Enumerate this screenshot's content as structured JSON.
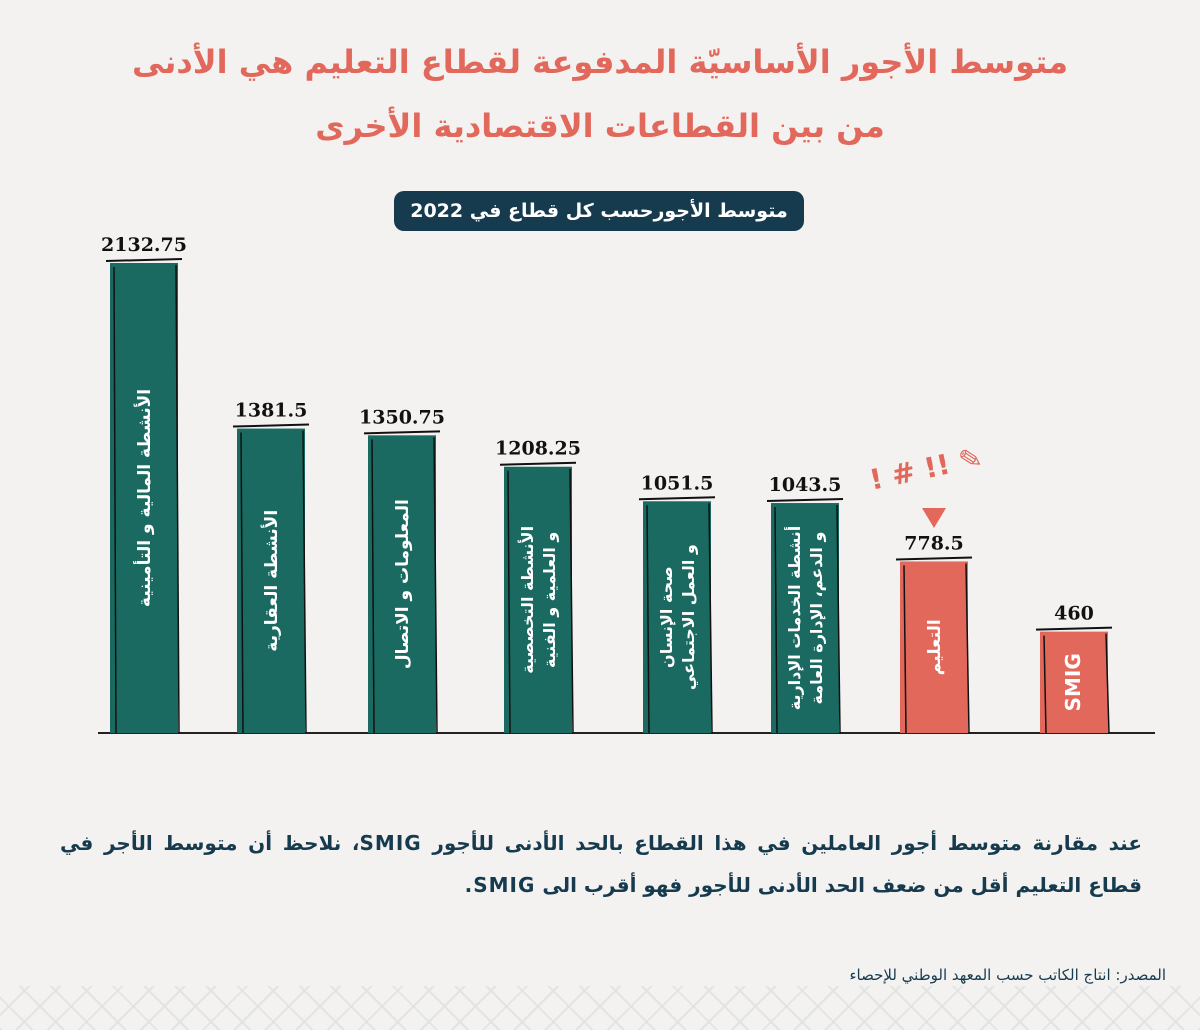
{
  "title_line1": "متوسط الأجور الأساسيّة المدفوعة لقطاع التعليم هي الأدنى",
  "title_line2": "من بين القطاعات الاقتصادية الأخرى",
  "subtitle": "متوسط الأجورحسب كل قطاع في 2022",
  "note": "عند مقارنة متوسط أجور العاملين في هذا القطاع بالحد الأدنى للأجور SMIG، نلاحظ أن متوسط الأجر في قطاع التعليم  أقل من ضعف الحد الأدنى للأجور فهو أقرب الى SMIG.",
  "source": "المصدر: انتاج الكاتب حسب المعهد الوطني للإحصاء",
  "colors": {
    "bar": "#1a6a62",
    "highlight": "#e1685b",
    "title": "#e1685b",
    "text_dark": "#163a4e"
  },
  "chart_data": {
    "type": "bar",
    "title": "متوسط الأجورحسب كل قطاع في 2022",
    "xlabel": "",
    "ylabel": "",
    "ylim": [
      0,
      2200
    ],
    "grid": false,
    "categories": [
      [
        "الأنشطة المالية و التأمينية"
      ],
      [
        "الأنشطة العقارية"
      ],
      [
        "المعلومات و الاتصال"
      ],
      [
        "الأنشطة التخصصية",
        "و العلمية و الفنية"
      ],
      [
        "صحة الإنسان",
        "و العمل الاجتماعي"
      ],
      [
        "أنشطة الخدمات الإدارية",
        "و الدعم، الإدارة العامة"
      ],
      [
        "التعليم"
      ],
      [
        "SMIG"
      ]
    ],
    "value_labels": [
      "2132.75",
      "1381.5",
      "1350.75",
      "1208.25",
      "1051.5",
      "1043.5",
      "778.5",
      "460"
    ],
    "values": [
      2132.75,
      1381.5,
      1350.75,
      1208.25,
      1051.5,
      1043.5,
      778.5,
      460
    ],
    "highlight": [
      false,
      false,
      false,
      false,
      false,
      false,
      true,
      true
    ],
    "annotation": "! # !! ✎"
  }
}
